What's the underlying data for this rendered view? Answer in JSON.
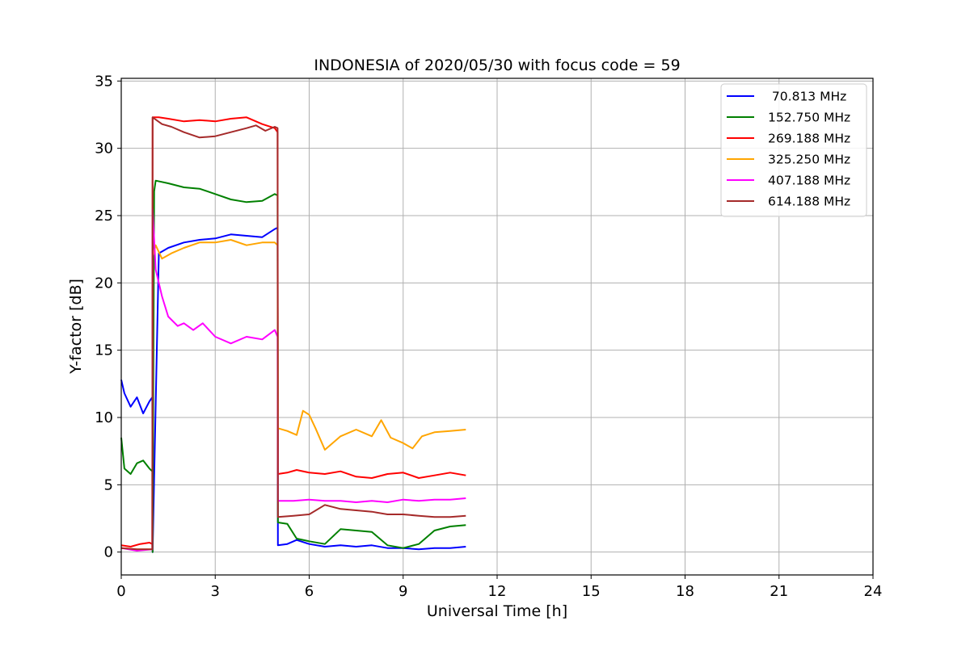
{
  "chart_data": {
    "type": "line",
    "title": "INDONESIA of 2020/05/30 with focus code = 59",
    "xlabel": "Universal Time [h]",
    "ylabel": "Y-factor [dB]",
    "xlim": [
      0,
      24
    ],
    "ylim": [
      -1.7,
      35.2
    ],
    "xticks": [
      0,
      3,
      6,
      9,
      12,
      15,
      18,
      21,
      24
    ],
    "xtick_labels": [
      "0",
      "3",
      "6",
      "9",
      "12",
      "15",
      "18",
      "21",
      "24"
    ],
    "yticks": [
      0,
      5,
      10,
      15,
      20,
      25,
      30,
      35
    ],
    "ytick_labels": [
      "0",
      "5",
      "10",
      "15",
      "20",
      "25",
      "30",
      "35"
    ],
    "grid": true,
    "legend_position": "top-right",
    "series": [
      {
        "name": " 70.813 MHz",
        "color": "#0000ff",
        "x": [
          0,
          0.1,
          0.3,
          0.5,
          0.7,
          0.9,
          0.99,
          1.0,
          1.2,
          1.5,
          2.0,
          2.5,
          3.0,
          3.5,
          4.0,
          4.5,
          4.9,
          4.99,
          5.0,
          5.3,
          5.6,
          6.0,
          6.5,
          7.0,
          7.5,
          8.0,
          8.5,
          9.0,
          9.5,
          10.0,
          10.5,
          11.0
        ],
        "y": [
          12.8,
          11.8,
          10.8,
          11.5,
          10.3,
          11.2,
          11.5,
          0.0,
          22.2,
          22.6,
          23.0,
          23.2,
          23.3,
          23.6,
          23.5,
          23.4,
          24.0,
          24.1,
          0.5,
          0.6,
          0.9,
          0.6,
          0.4,
          0.5,
          0.4,
          0.5,
          0.3,
          0.3,
          0.2,
          0.3,
          0.3,
          0.4
        ]
      },
      {
        "name": "152.750 MHz",
        "color": "#008000",
        "x": [
          0,
          0.1,
          0.3,
          0.5,
          0.7,
          0.9,
          0.99,
          1.0,
          1.05,
          1.1,
          1.5,
          2.0,
          2.5,
          3.0,
          3.5,
          4.0,
          4.5,
          4.9,
          4.99,
          5.0,
          5.3,
          5.6,
          6.0,
          6.5,
          7.0,
          7.5,
          8.0,
          8.5,
          9.0,
          9.5,
          10.0,
          10.5,
          11.0
        ],
        "y": [
          8.5,
          6.2,
          5.8,
          6.6,
          6.8,
          6.2,
          6.0,
          0.0,
          26.8,
          27.6,
          27.4,
          27.1,
          27.0,
          26.6,
          26.2,
          26.0,
          26.1,
          26.6,
          26.5,
          2.2,
          2.1,
          1.0,
          0.8,
          0.6,
          1.7,
          1.6,
          1.5,
          0.5,
          0.3,
          0.6,
          1.6,
          1.9,
          2.0
        ]
      },
      {
        "name": "269.188 MHz",
        "color": "#ff0000",
        "x": [
          0,
          0.3,
          0.6,
          0.9,
          0.99,
          1.0,
          1.2,
          1.5,
          2.0,
          2.5,
          3.0,
          3.5,
          4.0,
          4.5,
          4.9,
          4.99,
          5.0,
          5.3,
          5.6,
          6.0,
          6.5,
          7.0,
          7.5,
          8.0,
          8.5,
          9.0,
          9.5,
          10.0,
          10.5,
          11.0
        ],
        "y": [
          0.5,
          0.4,
          0.6,
          0.7,
          0.6,
          32.3,
          32.3,
          32.2,
          32.0,
          32.1,
          32.0,
          32.2,
          32.3,
          31.8,
          31.5,
          31.2,
          5.8,
          5.9,
          6.1,
          5.9,
          5.8,
          6.0,
          5.6,
          5.5,
          5.8,
          5.9,
          5.5,
          5.7,
          5.9,
          5.7
        ]
      },
      {
        "name": "325.250 MHz",
        "color": "#ffa500",
        "x": [
          0,
          0.5,
          0.99,
          1.0,
          1.1,
          1.3,
          1.6,
          2.0,
          2.5,
          3.0,
          3.5,
          4.0,
          4.5,
          4.9,
          4.99,
          5.0,
          5.3,
          5.6,
          5.8,
          6.0,
          6.2,
          6.5,
          7.0,
          7.5,
          8.0,
          8.3,
          8.6,
          9.0,
          9.3,
          9.6,
          10.0,
          10.5,
          11.0
        ],
        "y": [
          0.3,
          0.2,
          0.2,
          22.0,
          22.8,
          21.8,
          22.2,
          22.6,
          23.0,
          23.0,
          23.2,
          22.8,
          23.0,
          23.0,
          22.8,
          9.2,
          9.0,
          8.7,
          10.5,
          10.2,
          9.2,
          7.6,
          8.6,
          9.1,
          8.6,
          9.8,
          8.5,
          8.1,
          7.7,
          8.6,
          8.9,
          9.0,
          9.1
        ]
      },
      {
        "name": "407.188 MHz",
        "color": "#ff00ff",
        "x": [
          0,
          0.5,
          0.99,
          1.0,
          1.1,
          1.3,
          1.5,
          1.8,
          2.0,
          2.3,
          2.6,
          3.0,
          3.5,
          4.0,
          4.5,
          4.9,
          4.99,
          5.0,
          5.5,
          6.0,
          6.5,
          7.0,
          7.5,
          8.0,
          8.5,
          9.0,
          9.5,
          10.0,
          10.5,
          11.0
        ],
        "y": [
          0.3,
          0.1,
          0.2,
          25.5,
          21.0,
          19.0,
          17.5,
          16.8,
          17.0,
          16.5,
          17.0,
          16.0,
          15.5,
          16.0,
          15.8,
          16.5,
          16.0,
          3.8,
          3.8,
          3.9,
          3.8,
          3.8,
          3.7,
          3.8,
          3.7,
          3.9,
          3.8,
          3.9,
          3.9,
          4.0
        ]
      },
      {
        "name": "614.188 MHz",
        "color": "#a52a2a",
        "x": [
          0,
          0.5,
          0.99,
          1.0,
          1.3,
          1.6,
          2.0,
          2.5,
          3.0,
          3.5,
          4.0,
          4.3,
          4.6,
          4.9,
          4.99,
          5.0,
          5.5,
          6.0,
          6.5,
          7.0,
          7.5,
          8.0,
          8.5,
          9.0,
          9.5,
          10.0,
          10.5,
          11.0
        ],
        "y": [
          0.3,
          0.2,
          0.2,
          32.3,
          31.8,
          31.6,
          31.2,
          30.8,
          30.9,
          31.2,
          31.5,
          31.7,
          31.3,
          31.6,
          31.5,
          2.6,
          2.7,
          2.8,
          3.5,
          3.2,
          3.1,
          3.0,
          2.8,
          2.8,
          2.7,
          2.6,
          2.6,
          2.7
        ]
      }
    ]
  }
}
